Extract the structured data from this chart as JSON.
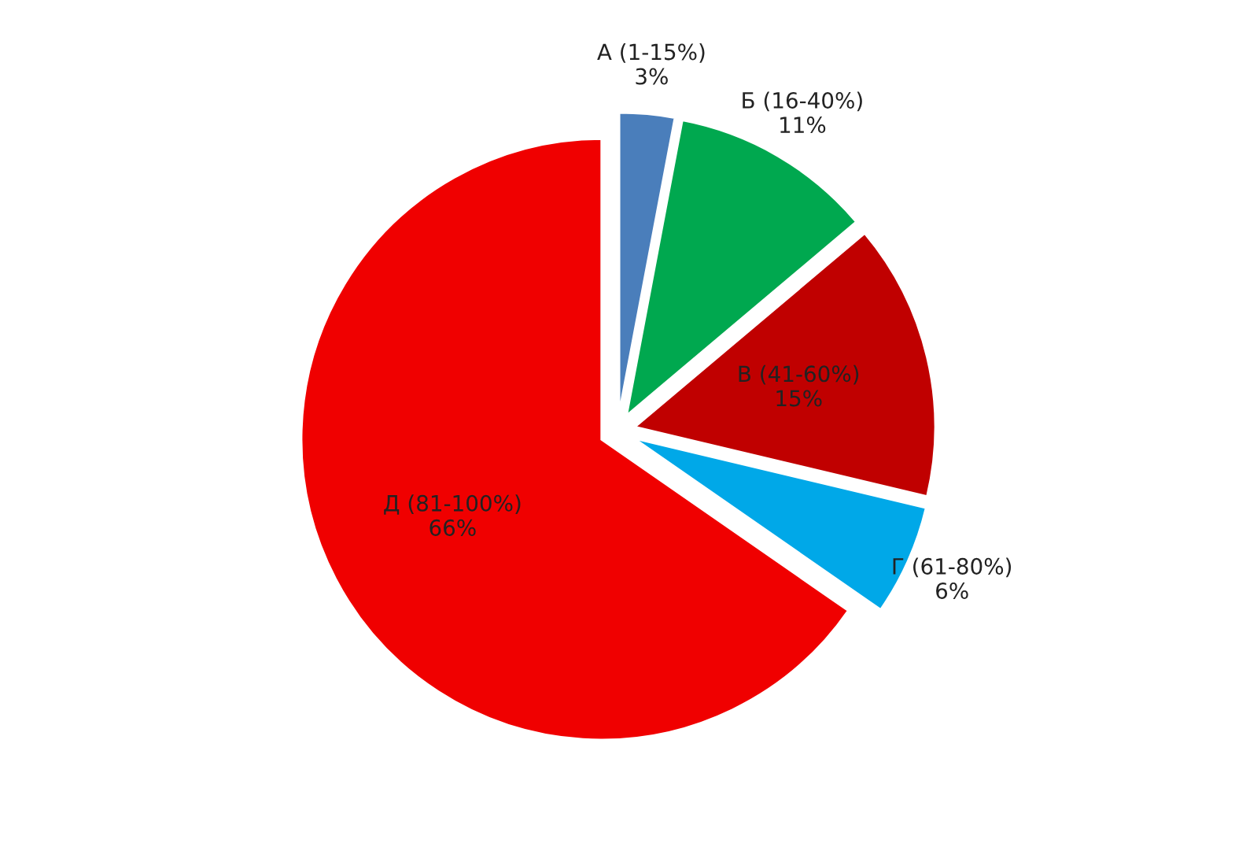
{
  "chart_data": {
    "type": "pie",
    "categories": [
      "А (1-15%)",
      "Б (16-40%)",
      "В (41-60%)",
      "Г (61-80%)",
      "Д (81-100%)"
    ],
    "values": [
      3,
      11,
      15,
      6,
      66
    ],
    "value_labels": [
      "3%",
      "11%",
      "15%",
      "6%",
      "66%"
    ],
    "colors": [
      "#4a7ebb",
      "#00a84f",
      "#c00000",
      "#00a8e8",
      "#f00000"
    ],
    "legend": false
  }
}
